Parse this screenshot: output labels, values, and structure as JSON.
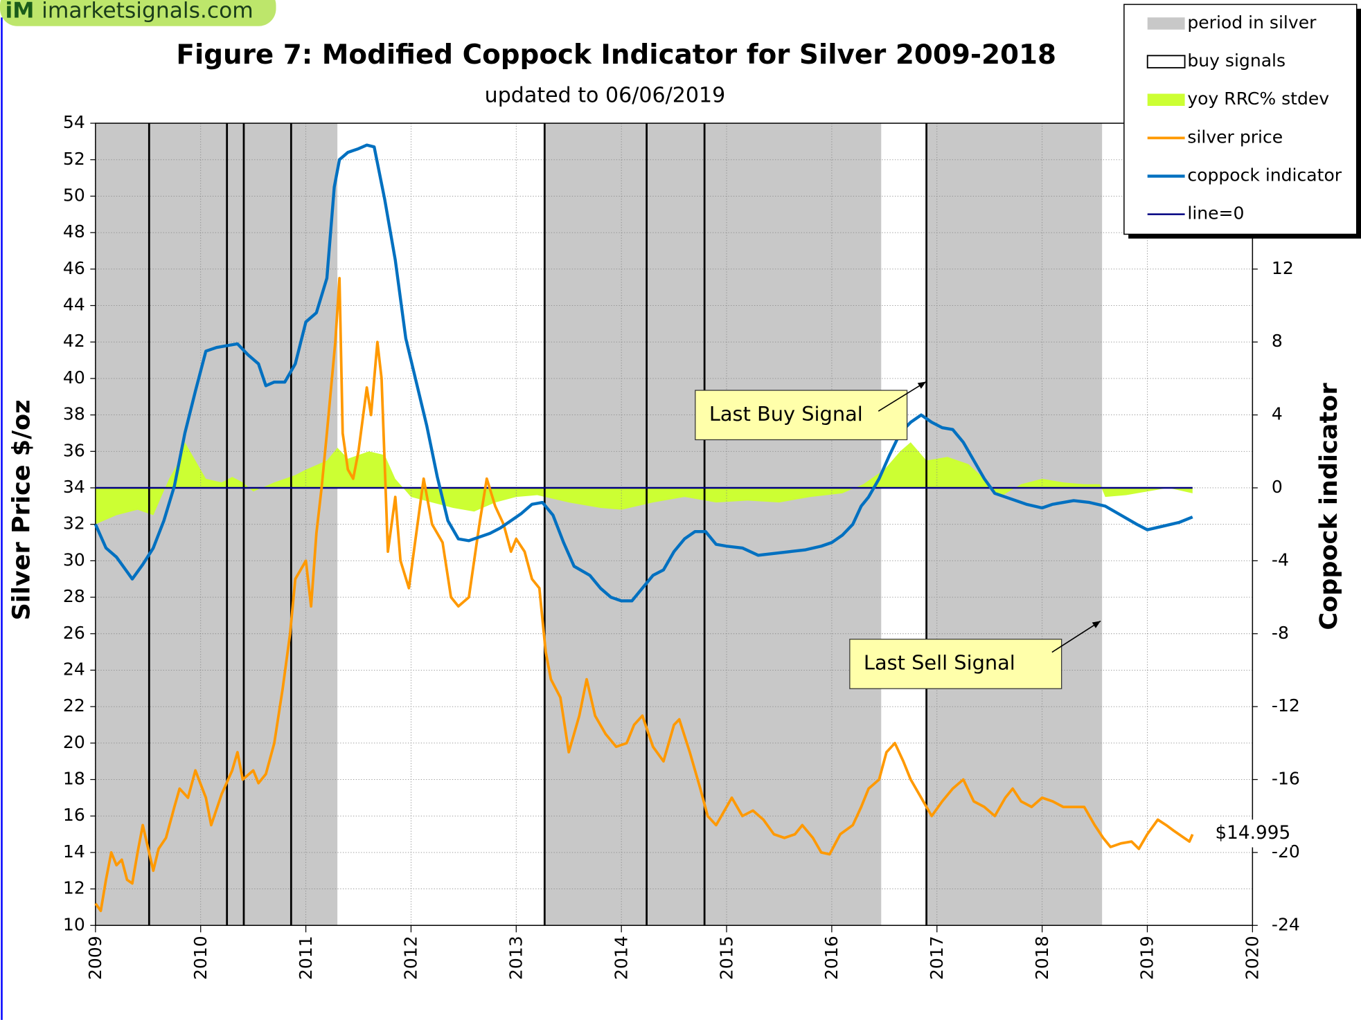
{
  "logo": {
    "mark": "iM",
    "site": "imarketsignals.com"
  },
  "chart_data": {
    "type": "line",
    "title": "Figure 7:  Modified Coppock Indicator for Silver  2009-2018",
    "subtitle": "updated to  06/06/2019",
    "y_label": "Silver Price  $/oz",
    "y2_label": "Coppock indicator",
    "xlim": [
      2009,
      2020
    ],
    "xticks": [
      2009,
      2010,
      2011,
      2012,
      2013,
      2014,
      2015,
      2016,
      2017,
      2018,
      2019,
      2020
    ],
    "ylim": [
      10,
      54
    ],
    "yticks": [
      10,
      12,
      14,
      16,
      18,
      20,
      22,
      24,
      26,
      28,
      30,
      32,
      34,
      36,
      38,
      40,
      42,
      44,
      46,
      48,
      50,
      52,
      54
    ],
    "y2lim": [
      -24,
      20
    ],
    "y2ticks": [
      -24,
      -20,
      -16,
      -12,
      -8,
      -4,
      0,
      4,
      8,
      12
    ],
    "grid": true,
    "legend": "top-right",
    "periods": {
      "name": "period in silver",
      "color": "#c8c8c8",
      "spans": [
        [
          2009,
          2011.3
        ],
        [
          2013.27,
          2016.47
        ],
        [
          2016.9,
          2018.57
        ]
      ]
    },
    "signals": {
      "name": "buy signals",
      "color": "#000000",
      "x": [
        2009.51,
        2010.25,
        2010.41,
        2010.86,
        2013.27,
        2014.24,
        2014.79,
        2016.9
      ]
    },
    "series": [
      {
        "name": "yoy RRC% stdev",
        "color": "#ccff33",
        "kind": "area",
        "axis": "y2",
        "x": [
          2009,
          2009.2,
          2009.4,
          2009.55,
          2009.7,
          2009.8,
          2009.85,
          2009.95,
          2010.05,
          2010.2,
          2010.3,
          2010.4,
          2010.5,
          2010.7,
          2010.9,
          2011,
          2011.2,
          2011.3,
          2011.4,
          2011.6,
          2011.75,
          2011.85,
          2012,
          2012.2,
          2012.4,
          2012.6,
          2012.8,
          2013,
          2013.2,
          2013.5,
          2013.8,
          2014,
          2014.3,
          2014.6,
          2014.9,
          2015.2,
          2015.5,
          2015.8,
          2016.1,
          2016.3,
          2016.5,
          2016.65,
          2016.75,
          2016.9,
          2017.1,
          2017.3,
          2017.45,
          2017.6,
          2017.8,
          2018,
          2018.2,
          2018.4,
          2018.55,
          2018.6,
          2018.8,
          2019,
          2019.2,
          2019.43
        ],
        "values": [
          -2,
          -1.5,
          -1.2,
          -1.5,
          0.5,
          1.5,
          2.5,
          1.5,
          0.5,
          0.3,
          0.6,
          0.3,
          -0.2,
          0.3,
          0.7,
          1,
          1.5,
          2.2,
          1.6,
          2,
          1.8,
          0.5,
          -0.5,
          -0.8,
          -1.1,
          -1.3,
          -0.8,
          -0.5,
          -0.4,
          -0.8,
          -1.1,
          -1.2,
          -0.8,
          -0.5,
          -0.8,
          -0.7,
          -0.8,
          -0.5,
          -0.3,
          0.2,
          1,
          2,
          2.5,
          1.5,
          1.7,
          1.3,
          0.5,
          -0.5,
          0.2,
          0.5,
          0.3,
          0.2,
          0.2,
          -0.5,
          -0.4,
          -0.2,
          0,
          -0.3
        ]
      },
      {
        "name": "silver price",
        "color": "#ff9900",
        "kind": "line",
        "axis": "y",
        "last_label": "$14.995",
        "x": [
          2009,
          2009.05,
          2009.1,
          2009.15,
          2009.2,
          2009.25,
          2009.3,
          2009.35,
          2009.4,
          2009.45,
          2009.55,
          2009.6,
          2009.67,
          2009.75,
          2009.8,
          2009.88,
          2009.95,
          2010.05,
          2010.1,
          2010.2,
          2010.3,
          2010.35,
          2010.4,
          2010.5,
          2010.55,
          2010.62,
          2010.7,
          2010.78,
          2010.85,
          2010.9,
          2010.95,
          2011,
          2011.05,
          2011.1,
          2011.15,
          2011.2,
          2011.28,
          2011.32,
          2011.35,
          2011.4,
          2011.45,
          2011.5,
          2011.58,
          2011.62,
          2011.68,
          2011.72,
          2011.78,
          2011.85,
          2011.9,
          2011.98,
          2012.05,
          2012.12,
          2012.2,
          2012.3,
          2012.38,
          2012.45,
          2012.55,
          2012.65,
          2012.72,
          2012.8,
          2012.88,
          2012.95,
          2013,
          2013.08,
          2013.15,
          2013.22,
          2013.28,
          2013.33,
          2013.42,
          2013.5,
          2013.6,
          2013.67,
          2013.75,
          2013.85,
          2013.95,
          2014.05,
          2014.12,
          2014.2,
          2014.3,
          2014.4,
          2014.5,
          2014.55,
          2014.65,
          2014.75,
          2014.82,
          2014.9,
          2015,
          2015.05,
          2015.15,
          2015.25,
          2015.35,
          2015.45,
          2015.55,
          2015.65,
          2015.72,
          2015.82,
          2015.9,
          2015.98,
          2016.08,
          2016.2,
          2016.28,
          2016.35,
          2016.45,
          2016.52,
          2016.6,
          2016.68,
          2016.75,
          2016.85,
          2016.95,
          2017.05,
          2017.15,
          2017.25,
          2017.35,
          2017.45,
          2017.55,
          2017.65,
          2017.72,
          2017.8,
          2017.9,
          2018,
          2018.1,
          2018.2,
          2018.3,
          2018.4,
          2018.5,
          2018.58,
          2018.65,
          2018.75,
          2018.85,
          2018.92,
          2019,
          2019.1,
          2019.18,
          2019.25,
          2019.35,
          2019.4,
          2019.43
        ],
        "values": [
          11.2,
          10.8,
          12.5,
          14,
          13.3,
          13.6,
          12.5,
          12.3,
          14,
          15.5,
          13,
          14.2,
          14.8,
          16.5,
          17.5,
          17,
          18.5,
          17,
          15.5,
          17.2,
          18.5,
          19.5,
          18,
          18.5,
          17.8,
          18.3,
          20,
          23,
          26,
          29,
          29.5,
          30,
          27.5,
          31.5,
          34,
          37,
          42,
          45.5,
          37,
          35,
          34.5,
          36,
          39.5,
          38,
          42,
          40,
          30.5,
          33.5,
          30,
          28.5,
          31.5,
          34.5,
          32,
          31,
          28,
          27.5,
          28,
          32,
          34.5,
          33,
          32,
          30.5,
          31.2,
          30.5,
          29,
          28.5,
          25,
          23.5,
          22.5,
          19.5,
          21.5,
          23.5,
          21.5,
          20.5,
          19.8,
          20,
          21,
          21.5,
          19.8,
          19,
          21,
          21.3,
          19.5,
          17.5,
          16,
          15.5,
          16.5,
          17,
          16,
          16.3,
          15.8,
          15,
          14.8,
          15,
          15.5,
          14.8,
          14,
          13.9,
          15,
          15.5,
          16.5,
          17.5,
          18,
          19.5,
          20,
          19,
          18,
          17,
          16,
          16.8,
          17.5,
          18,
          16.8,
          16.5,
          16,
          17,
          17.5,
          16.8,
          16.5,
          17,
          16.8,
          16.5,
          16.5,
          16.5,
          15.5,
          14.8,
          14.3,
          14.5,
          14.6,
          14.2,
          15,
          15.8,
          15.5,
          15.2,
          14.8,
          14.6,
          14.995
        ]
      },
      {
        "name": "coppock indicator",
        "color": "#0070c0",
        "kind": "line",
        "axis": "y2",
        "x": [
          2009,
          2009.1,
          2009.2,
          2009.3,
          2009.35,
          2009.45,
          2009.55,
          2009.65,
          2009.75,
          2009.85,
          2009.95,
          2010.05,
          2010.15,
          2010.25,
          2010.35,
          2010.45,
          2010.55,
          2010.62,
          2010.7,
          2010.8,
          2010.9,
          2011,
          2011.1,
          2011.2,
          2011.27,
          2011.32,
          2011.4,
          2011.5,
          2011.58,
          2011.65,
          2011.75,
          2011.85,
          2011.95,
          2012.05,
          2012.15,
          2012.25,
          2012.35,
          2012.45,
          2012.55,
          2012.65,
          2012.75,
          2012.85,
          2012.95,
          2013.05,
          2013.15,
          2013.25,
          2013.35,
          2013.45,
          2013.55,
          2013.7,
          2013.8,
          2013.9,
          2014,
          2014.1,
          2014.2,
          2014.3,
          2014.4,
          2014.5,
          2014.6,
          2014.7,
          2014.8,
          2014.9,
          2015,
          2015.15,
          2015.3,
          2015.45,
          2015.6,
          2015.75,
          2015.9,
          2016,
          2016.1,
          2016.2,
          2016.28,
          2016.35,
          2016.45,
          2016.55,
          2016.65,
          2016.75,
          2016.85,
          2016.95,
          2017.05,
          2017.15,
          2017.25,
          2017.35,
          2017.45,
          2017.55,
          2017.7,
          2017.85,
          2018,
          2018.1,
          2018.3,
          2018.45,
          2018.6,
          2018.75,
          2018.9,
          2019,
          2019.15,
          2019.3,
          2019.43
        ],
        "values": [
          -2,
          -3.3,
          -3.8,
          -4.6,
          -5,
          -4.2,
          -3.3,
          -1.8,
          0.1,
          3,
          5.3,
          7.5,
          7.7,
          7.8,
          7.9,
          7.3,
          6.8,
          5.6,
          5.8,
          5.8,
          6.8,
          9.1,
          9.6,
          11.5,
          16.5,
          18,
          18.4,
          18.6,
          18.8,
          18.7,
          15.8,
          12.5,
          8.2,
          5.8,
          3.4,
          0.6,
          -1.8,
          -2.8,
          -2.9,
          -2.7,
          -2.5,
          -2.2,
          -1.8,
          -1.4,
          -0.9,
          -0.8,
          -1.5,
          -3,
          -4.3,
          -4.8,
          -5.5,
          -6,
          -6.2,
          -6.2,
          -5.5,
          -4.8,
          -4.5,
          -3.5,
          -2.8,
          -2.4,
          -2.4,
          -3.1,
          -3.2,
          -3.3,
          -3.7,
          -3.6,
          -3.5,
          -3.4,
          -3.2,
          -3,
          -2.6,
          -2,
          -1,
          -0.5,
          0.5,
          1.8,
          3,
          3.6,
          4,
          3.6,
          3.3,
          3.2,
          2.5,
          1.5,
          0.5,
          -0.3,
          -0.6,
          -0.9,
          -1.1,
          -0.9,
          -0.7,
          -0.8,
          -1,
          -1.5,
          -2,
          -2.3,
          -2.1,
          -1.9,
          -1.6
        ]
      }
    ],
    "zero_line": {
      "name": "line=0",
      "color": "#000080",
      "axis": "y2",
      "value": 0
    },
    "annotations": [
      {
        "text": "Last Buy Signal"
      },
      {
        "text": "Last Sell Signal"
      }
    ]
  }
}
